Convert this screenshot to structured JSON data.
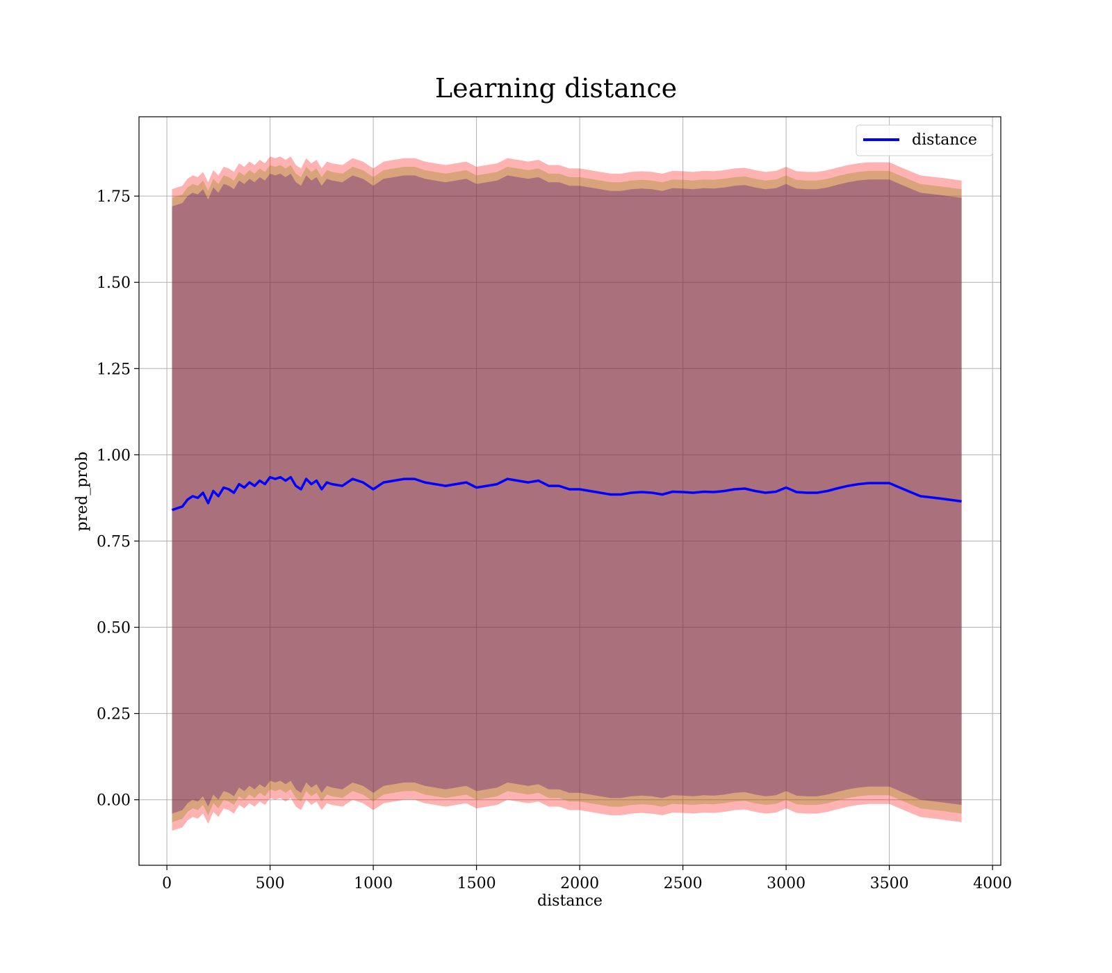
{
  "chart_data": {
    "type": "line",
    "title": "Learning distance",
    "xlabel": "distance",
    "ylabel": "pred_prob",
    "xlim": [
      -135,
      4040
    ],
    "ylim": [
      -0.19,
      1.98
    ],
    "grid": true,
    "legend_position": "top-right",
    "x_ticks": [
      0,
      500,
      1000,
      1500,
      2000,
      2500,
      3000,
      3500,
      4000
    ],
    "x_tick_labels": [
      "0",
      "500",
      "1000",
      "1500",
      "2000",
      "2500",
      "3000",
      "3500",
      "4000"
    ],
    "y_ticks": [
      0.0,
      0.25,
      0.5,
      0.75,
      1.0,
      1.25,
      1.5,
      1.75
    ],
    "y_tick_labels": [
      "0.00",
      "0.25",
      "0.50",
      "0.75",
      "1.00",
      "1.25",
      "1.50",
      "1.75"
    ],
    "series": [
      {
        "name": "distance",
        "color": "#0000ff",
        "x": [
          25,
          50,
          75,
          100,
          125,
          150,
          175,
          200,
          225,
          250,
          275,
          300,
          325,
          350,
          375,
          400,
          425,
          450,
          475,
          500,
          525,
          550,
          575,
          600,
          625,
          650,
          675,
          700,
          725,
          750,
          775,
          800,
          850,
          900,
          950,
          1000,
          1050,
          1100,
          1150,
          1200,
          1250,
          1300,
          1350,
          1400,
          1450,
          1500,
          1550,
          1600,
          1650,
          1700,
          1750,
          1800,
          1850,
          1900,
          1950,
          2000,
          2050,
          2100,
          2150,
          2200,
          2250,
          2300,
          2350,
          2400,
          2450,
          2500,
          2550,
          2600,
          2650,
          2700,
          2750,
          2800,
          2850,
          2900,
          2950,
          3000,
          3050,
          3100,
          3150,
          3200,
          3250,
          3300,
          3350,
          3400,
          3450,
          3500,
          3550,
          3650,
          3750,
          3850
        ],
        "y": [
          0.84,
          0.845,
          0.85,
          0.87,
          0.88,
          0.875,
          0.89,
          0.86,
          0.895,
          0.88,
          0.905,
          0.9,
          0.89,
          0.915,
          0.905,
          0.92,
          0.91,
          0.925,
          0.915,
          0.935,
          0.93,
          0.935,
          0.925,
          0.935,
          0.91,
          0.9,
          0.93,
          0.915,
          0.925,
          0.9,
          0.92,
          0.915,
          0.91,
          0.93,
          0.92,
          0.9,
          0.92,
          0.925,
          0.93,
          0.93,
          0.92,
          0.915,
          0.91,
          0.915,
          0.92,
          0.905,
          0.91,
          0.915,
          0.93,
          0.925,
          0.92,
          0.925,
          0.91,
          0.91,
          0.9,
          0.9,
          0.895,
          0.89,
          0.885,
          0.885,
          0.89,
          0.892,
          0.89,
          0.885,
          0.893,
          0.892,
          0.89,
          0.893,
          0.892,
          0.895,
          0.9,
          0.902,
          0.895,
          0.89,
          0.893,
          0.905,
          0.892,
          0.89,
          0.89,
          0.895,
          0.903,
          0.91,
          0.915,
          0.918,
          0.918,
          0.918,
          0.905,
          0.88,
          0.873,
          0.865
        ]
      }
    ],
    "bands": [
      {
        "color": "#ff0000",
        "opacity": 0.3,
        "upper_offset": 0.93,
        "lower_offset": -0.93
      },
      {
        "color": "#808000",
        "opacity": 0.3,
        "upper_offset": 0.905,
        "lower_offset": -0.905
      },
      {
        "color": "#400080",
        "opacity": 0.3,
        "upper_offset": 0.88,
        "lower_offset": -0.88
      }
    ]
  }
}
